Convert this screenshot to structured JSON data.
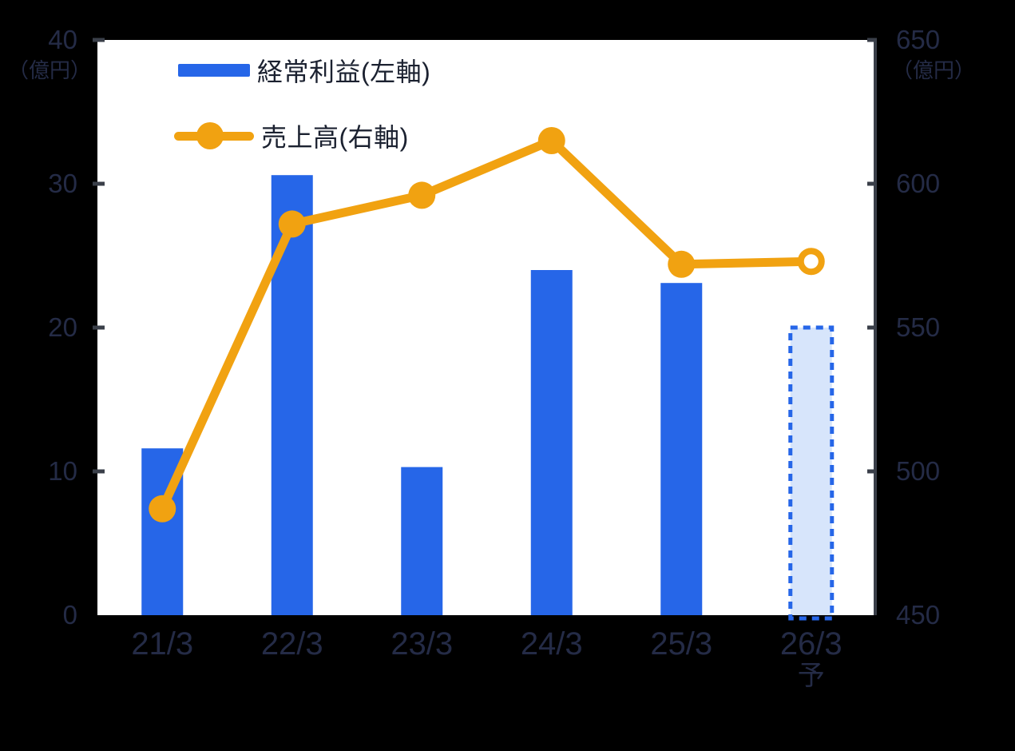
{
  "chart_data": {
    "type": "combo-bar-line",
    "categories": [
      "21/3",
      "22/3",
      "23/3",
      "24/3",
      "25/3",
      "26/3"
    ],
    "category_sub_labels": [
      "",
      "",
      "",
      "",
      "",
      "予"
    ],
    "series": [
      {
        "name": "経常利益(左軸)",
        "type": "bar",
        "axis": "left",
        "values": [
          11.6,
          30.6,
          10.3,
          24.0,
          23.1,
          20.0
        ],
        "forecast_index": 5
      },
      {
        "name": "売上高(右軸)",
        "type": "line",
        "axis": "right",
        "values": [
          487,
          586,
          596,
          615,
          572,
          573
        ],
        "forecast_index": 5
      }
    ],
    "left_axis": {
      "unit": "（億円）",
      "min": 0,
      "max": 40,
      "ticks": [
        0,
        10,
        20,
        30,
        40
      ]
    },
    "right_axis": {
      "unit": "（億円）",
      "min": 450,
      "max": 650,
      "ticks": [
        450,
        500,
        550,
        600,
        650
      ]
    },
    "legend_position": "top-left-inside",
    "grid": false,
    "colors": {
      "bar": "#2666E8",
      "bar_forecast_fill": "#D7E5FB",
      "line": "#F1A211",
      "marker": "#F1A211",
      "forecast_marker_center": "#FFFFFF",
      "axis_line": "#3A3F49",
      "tick": "#3A3F49",
      "axis_text": "#242B46",
      "legend_text": "#1B2130",
      "plot_background": "#FFFFFF",
      "page_background": "#000000"
    }
  }
}
